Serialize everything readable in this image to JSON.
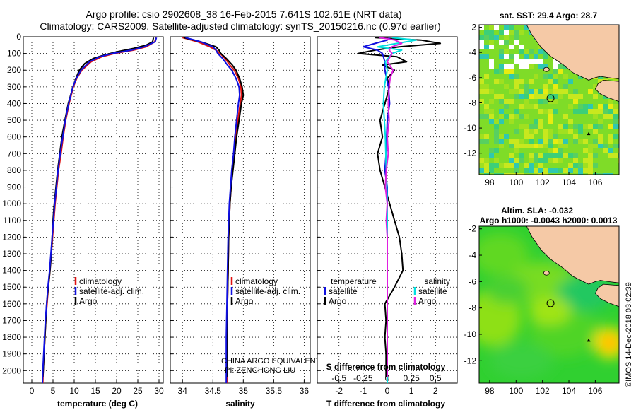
{
  "header": {
    "line1": "Argo profile: csio 2902608_38 16-Feb-2015 7.641S 102.61E (NRT data)",
    "line2": "Climatology: CARS2009. Satellite-adjusted climatology: synTS_20150216.nc (0.97d earlier)"
  },
  "chart_data": [
    {
      "type": "line",
      "id": "temperature",
      "xlabel": "temperature (deg C)",
      "ylabel": "",
      "xlim": [
        -2,
        31
      ],
      "ylim": [
        2075,
        0
      ],
      "xticks": [
        "0",
        "5",
        "10",
        "15",
        "20",
        "25",
        "30"
      ],
      "yticks": [
        "0",
        "100",
        "200",
        "300",
        "400",
        "500",
        "600",
        "700",
        "800",
        "900",
        "1000",
        "1100",
        "1200",
        "1300",
        "1400",
        "1500",
        "1600",
        "1700",
        "1800",
        "1900",
        "2000"
      ],
      "legend": [
        "climatology",
        "satellite-adj. clim.",
        "Argo"
      ],
      "series": [
        {
          "name": "climatology",
          "color": "#e01010",
          "depth": [
            5,
            30,
            60,
            80,
            100,
            120,
            150,
            200,
            250,
            300,
            400,
            500,
            600,
            700,
            800,
            900,
            1000,
            1100,
            1200,
            1300,
            1400,
            1500,
            1600,
            1700,
            1800,
            1900,
            2000,
            2075
          ],
          "values": [
            29.3,
            29.0,
            27.0,
            24.0,
            19.5,
            16.5,
            14.0,
            11.8,
            10.6,
            9.8,
            8.8,
            8.0,
            7.4,
            6.9,
            6.3,
            5.9,
            5.5,
            5.2,
            4.9,
            4.6,
            4.3,
            3.9,
            3.6,
            3.3,
            3.1,
            2.9,
            2.7,
            2.6
          ]
        },
        {
          "name": "satellite-adj. clim.",
          "color": "#1010e0",
          "depth": [
            5,
            30,
            60,
            80,
            100,
            120,
            150,
            200,
            250,
            300,
            400,
            500,
            600,
            700,
            800,
            900,
            1000,
            1100,
            1200,
            1300,
            1400,
            1500,
            1600,
            1700,
            1800,
            1900,
            2000,
            2075
          ],
          "values": [
            29.4,
            29.1,
            26.5,
            23.5,
            19.0,
            16.0,
            13.6,
            11.6,
            10.5,
            9.7,
            8.7,
            7.9,
            7.3,
            6.7,
            6.2,
            5.8,
            5.4,
            5.1,
            4.8,
            4.5,
            4.2,
            3.8,
            3.5,
            3.2,
            3.0,
            2.8,
            2.6,
            2.5
          ]
        },
        {
          "name": "Argo",
          "color": "#000000",
          "depth": [
            5,
            30,
            50,
            70,
            90,
            110,
            130,
            160,
            200,
            250,
            300,
            400,
            500,
            600,
            700,
            800,
            900,
            1000,
            1100,
            1200,
            1300,
            1400,
            1500,
            1600,
            1700,
            1800,
            1900,
            2000,
            2040
          ],
          "values": [
            28.7,
            28.5,
            27.0,
            24.0,
            20.0,
            17.0,
            14.5,
            12.5,
            11.2,
            10.4,
            9.7,
            8.6,
            7.8,
            7.1,
            6.6,
            6.1,
            5.7,
            5.3,
            5.0,
            4.8,
            4.6,
            4.3,
            3.9,
            3.5,
            3.3,
            3.1,
            2.9,
            2.7,
            2.6
          ]
        }
      ]
    },
    {
      "type": "line",
      "id": "salinity",
      "xlabel": "salinity",
      "xlim": [
        33.8,
        36.1
      ],
      "ylim": [
        2075,
        0
      ],
      "xticks": [
        "34",
        "34.5",
        "35",
        "35.5",
        "36"
      ],
      "legend": [
        "climatology",
        "satellite-adj. clim.",
        "Argo"
      ],
      "series": [
        {
          "name": "climatology",
          "color": "#e01010",
          "depth": [
            5,
            30,
            60,
            80,
            100,
            130,
            170,
            200,
            250,
            300,
            350,
            400,
            500,
            600,
            700,
            800,
            900,
            1000,
            1200,
            1400,
            1600,
            1800,
            2000,
            2075
          ],
          "values": [
            34.0,
            34.25,
            34.45,
            34.55,
            34.62,
            34.7,
            34.78,
            34.85,
            34.92,
            34.96,
            34.97,
            34.95,
            34.91,
            34.88,
            34.85,
            34.82,
            34.8,
            34.78,
            34.76,
            34.75,
            34.74,
            34.73,
            34.73,
            34.73
          ]
        },
        {
          "name": "satellite-adj. clim.",
          "color": "#1010e0",
          "depth": [
            5,
            30,
            60,
            80,
            100,
            130,
            170,
            200,
            250,
            300,
            350,
            400,
            500,
            600,
            700,
            800,
            900,
            1000,
            1200,
            1400,
            1600,
            1800,
            2000,
            2075
          ],
          "values": [
            34.05,
            34.3,
            34.5,
            34.55,
            34.58,
            34.66,
            34.74,
            34.81,
            34.88,
            34.93,
            34.94,
            34.92,
            34.89,
            34.86,
            34.84,
            34.81,
            34.79,
            34.77,
            34.75,
            34.74,
            34.73,
            34.72,
            34.72,
            34.72
          ]
        },
        {
          "name": "Argo",
          "color": "#000000",
          "depth": [
            5,
            30,
            60,
            80,
            100,
            130,
            170,
            200,
            250,
            300,
            350,
            400,
            500,
            600,
            700,
            800,
            900,
            1000,
            1200,
            1400,
            1600,
            1800,
            2000,
            2040
          ],
          "values": [
            34.02,
            34.3,
            34.55,
            34.6,
            34.63,
            34.72,
            34.82,
            34.88,
            34.94,
            34.98,
            35.0,
            34.97,
            34.93,
            34.89,
            34.86,
            34.83,
            34.8,
            34.78,
            34.76,
            34.75,
            34.74,
            34.73,
            34.73,
            34.73
          ]
        }
      ],
      "annotations": [
        "CHINA ARGO EQUIVALENT",
        "PI: ZENGHONG LIU"
      ]
    },
    {
      "type": "line",
      "id": "difference",
      "xlabel": "T difference from climatology",
      "xlabel_top": "S difference from climatology",
      "xlim": [
        -2.9,
        2.9
      ],
      "ylim": [
        2075,
        0
      ],
      "xticks": [
        "-2",
        "-1",
        "0",
        "1",
        "2"
      ],
      "xticks_salinity": [
        "-0.5",
        "-0.25",
        "0",
        "0.25",
        "0.5"
      ],
      "legend_temperature": [
        "temperature",
        "satellite",
        "Argo"
      ],
      "legend_salinity": [
        "salinity",
        "satellite",
        "Argo"
      ],
      "series": [
        {
          "name": "T satellite",
          "color": "#1010e0",
          "depth": [
            5,
            20,
            40,
            60,
            80,
            100,
            150,
            200,
            300,
            400,
            500,
            700,
            800,
            900,
            1000,
            1200,
            1400,
            1600,
            1800,
            2000,
            2075
          ],
          "values": [
            0.1,
            0.0,
            -0.5,
            -1.0,
            -0.4,
            -0.2,
            -0.1,
            -0.1,
            0.05,
            0.1,
            0.0,
            -0.05,
            -0.1,
            0.0,
            0.0,
            0.0,
            0.0,
            0.0,
            0.0,
            0.0,
            0.0
          ]
        },
        {
          "name": "T Argo",
          "color": "#000000",
          "depth": [
            5,
            20,
            40,
            60,
            80,
            100,
            120,
            150,
            170,
            200,
            250,
            300,
            400,
            500,
            600,
            700,
            800,
            900,
            1000,
            1100,
            1200,
            1300,
            1400,
            1500,
            1600,
            1700,
            1800,
            1900,
            2000,
            2040
          ],
          "values": [
            -0.5,
            1.4,
            2.2,
            0.5,
            -0.5,
            -1.2,
            0.4,
            0.8,
            -0.2,
            0.3,
            0.0,
            0.1,
            -0.1,
            -0.3,
            -0.2,
            -0.4,
            -0.3,
            -0.1,
            0.1,
            0.3,
            0.5,
            0.6,
            0.65,
            0.3,
            -0.1,
            -0.05,
            -0.1,
            -0.05,
            -0.05,
            -0.05
          ]
        },
        {
          "name": "S satellite",
          "color": "#00e0e0",
          "depth": [
            5,
            20,
            40,
            60,
            80,
            100,
            150,
            200,
            300,
            400,
            600,
            800,
            1000,
            1200,
            1400,
            1600,
            1800,
            2000,
            2075
          ],
          "values": [
            0.05,
            0.3,
            0.1,
            -0.1,
            0.15,
            0.05,
            -0.02,
            0.0,
            -0.03,
            -0.04,
            -0.02,
            -0.01,
            0.0,
            0.0,
            0.0,
            0.0,
            0.0,
            0.0,
            0.0
          ]
        },
        {
          "name": "S Argo",
          "color": "#e020e0",
          "depth": [
            5,
            20,
            40,
            60,
            80,
            100,
            150,
            200,
            250,
            300,
            400,
            500,
            600,
            700,
            800,
            900,
            1000,
            1100,
            1200,
            1400,
            1600,
            1800,
            2000,
            2040
          ],
          "values": [
            -0.08,
            0.08,
            0.15,
            0.05,
            0.02,
            0.05,
            0.0,
            0.06,
            0.03,
            0.02,
            0.01,
            0.02,
            0.0,
            0.01,
            -0.01,
            -0.02,
            0.0,
            -0.01,
            0.0,
            0.0,
            0.0,
            0.0,
            0.0,
            0.0
          ]
        }
      ]
    },
    {
      "type": "heatmap",
      "id": "sst_map",
      "title": "sat. SST: 29.4 Argo: 28.7",
      "xlim": [
        97.2,
        107.8
      ],
      "ylim": [
        -13.7,
        -1.8
      ],
      "xticks": [
        "98",
        "100",
        "102",
        "104",
        "106"
      ],
      "yticks": [
        "-2",
        "-4",
        "-6",
        "-8",
        "-10",
        "-12"
      ],
      "argo_position": [
        102.61,
        -7.641
      ],
      "marker_position": [
        105.5,
        -10.45
      ]
    },
    {
      "type": "heatmap",
      "id": "sla_map",
      "title_line1": "Altim. SLA: -0.032",
      "title_line2": "Argo h1000: -0.0043 h2000: 0.0013",
      "xlim": [
        97.2,
        107.8
      ],
      "ylim": [
        -13.7,
        -1.8
      ],
      "xticks": [
        "98",
        "100",
        "102",
        "104",
        "106"
      ],
      "yticks": [
        "-2",
        "-4",
        "-6",
        "-8",
        "-10",
        "-12"
      ],
      "argo_position": [
        102.61,
        -7.641
      ],
      "marker_position": [
        105.5,
        -10.45
      ]
    }
  ],
  "footer": {
    "watermark": "©IMOS 14-Dec-2018 03:02:39"
  },
  "colors": {
    "climatology": "#e01010",
    "satellite": "#1010e0",
    "argo": "#000000",
    "s_satellite": "#00e0e0",
    "s_argo": "#e020e0",
    "land": "#f5c9a6"
  }
}
